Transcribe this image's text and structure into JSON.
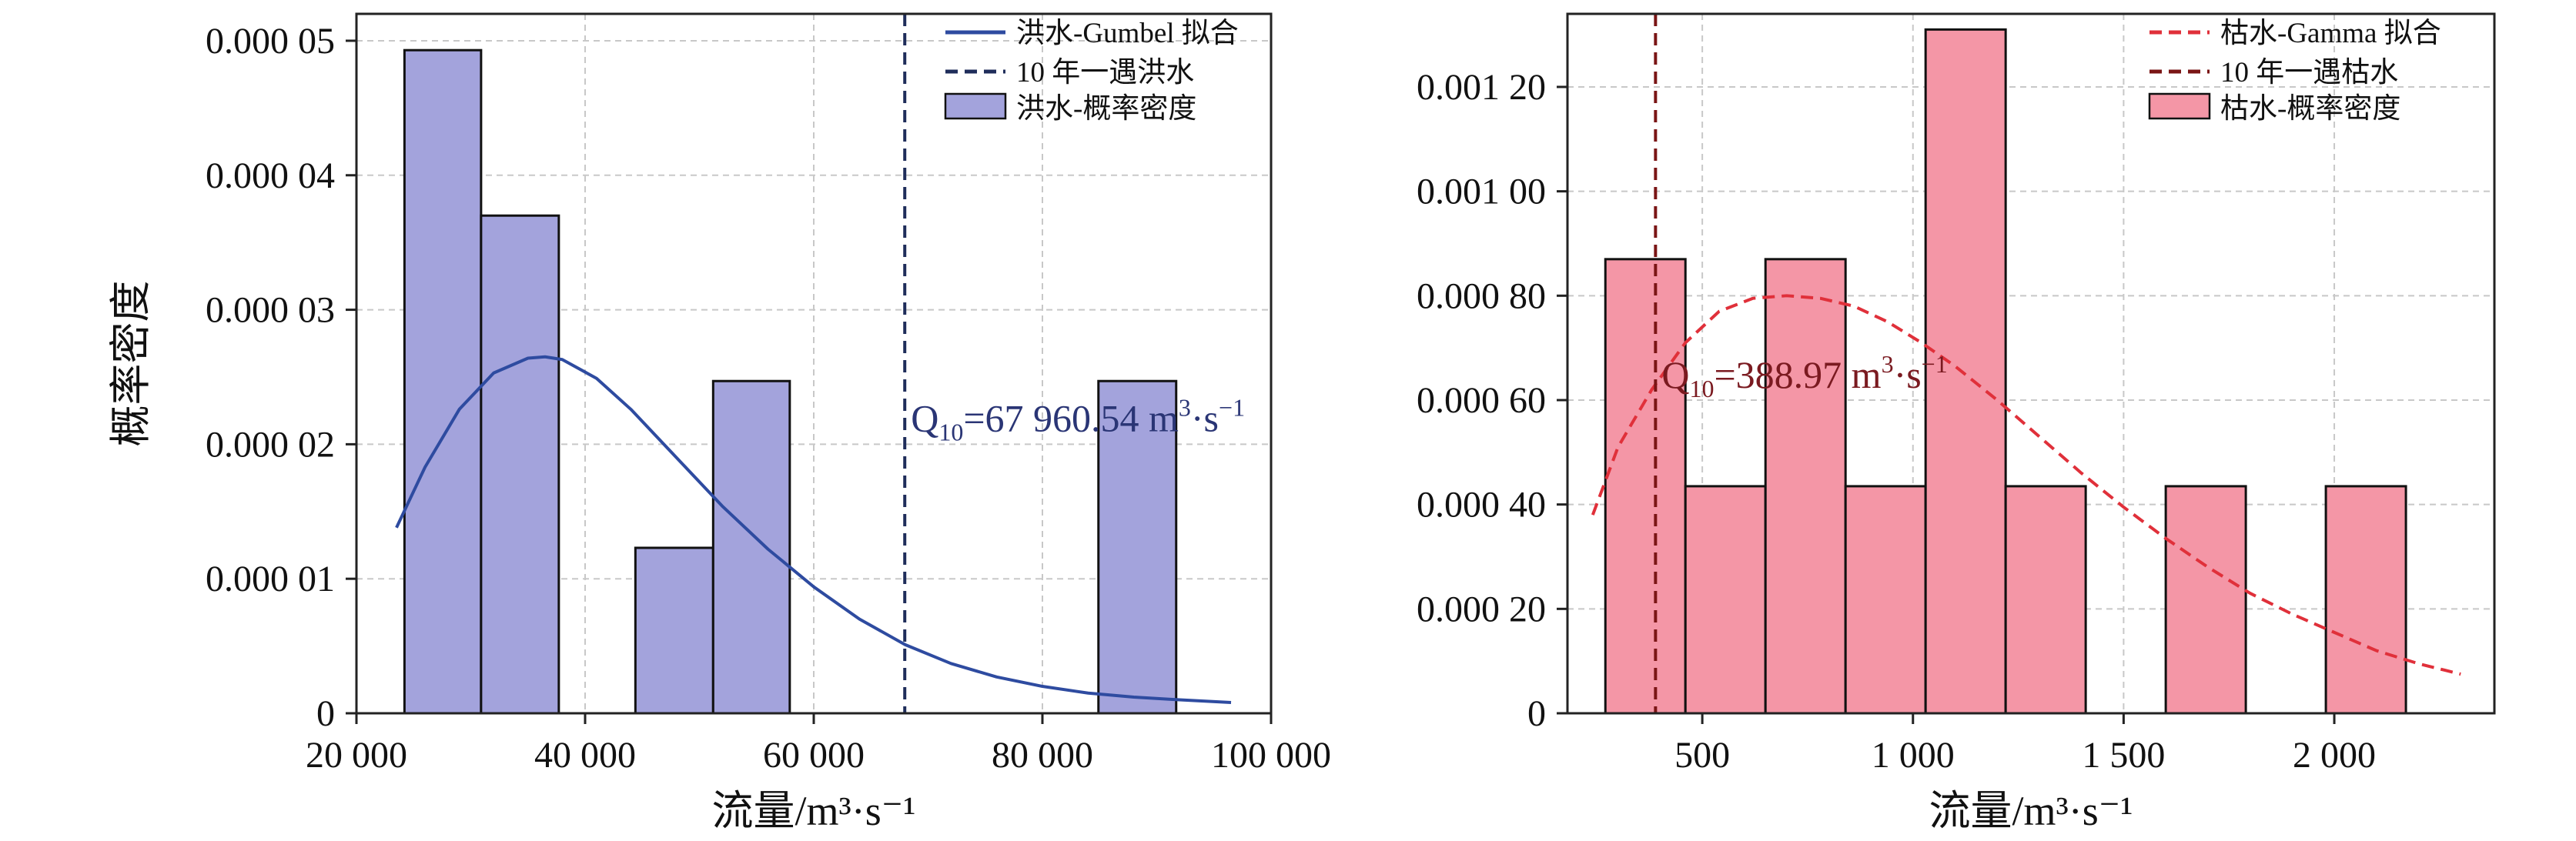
{
  "chart_data": [
    {
      "type": "bar",
      "subtype": "histogram-with-fit",
      "title": "",
      "xlabel": "流量/m³·s⁻¹",
      "ylabel": "概率密度",
      "xlim": [
        20000,
        100000
      ],
      "ylim": [
        0,
        5.2e-05
      ],
      "xticks": [
        20000,
        40000,
        60000,
        80000,
        100000
      ],
      "xtick_labels": [
        "20 000",
        "40 000",
        "60 000",
        "80 000",
        "100 000"
      ],
      "yticks": [
        0,
        1e-05,
        2e-05,
        3e-05,
        4e-05,
        5e-05
      ],
      "ytick_labels": [
        "0",
        "0.000 01",
        "0.000 02",
        "0.000 03",
        "0.000 04",
        "0.000 05"
      ],
      "grid": true,
      "legend_position": "top-right",
      "colors": {
        "bars": "#a3a3dc",
        "curve": "#2e4ba0",
        "vline": "#1f2d5a",
        "annotation": "#2a3575"
      },
      "bins": [
        {
          "x0": 24200,
          "x1": 30900,
          "value": 4.93e-05
        },
        {
          "x0": 30900,
          "x1": 37700,
          "value": 3.7e-05
        },
        {
          "x0": 37700,
          "x1": 44400,
          "value": 0
        },
        {
          "x0": 44400,
          "x1": 51200,
          "value": 1.23e-05
        },
        {
          "x0": 51200,
          "x1": 57900,
          "value": 2.47e-05
        },
        {
          "x0": 57900,
          "x1": 64700,
          "value": 0
        },
        {
          "x0": 64700,
          "x1": 71400,
          "value": 0
        },
        {
          "x0": 71400,
          "x1": 78100,
          "value": 0
        },
        {
          "x0": 78100,
          "x1": 84900,
          "value": 0
        },
        {
          "x0": 84900,
          "x1": 91700,
          "value": 2.47e-05
        }
      ],
      "fit_curve": {
        "x": [
          23500,
          26000,
          29000,
          32000,
          35000,
          36500,
          38000,
          41000,
          44000,
          48000,
          52000,
          56000,
          60000,
          64000,
          68000,
          72000,
          76000,
          80000,
          84000,
          88000,
          92000,
          96500
        ],
        "y": [
          1.38e-05,
          1.83e-05,
          2.26e-05,
          2.53e-05,
          2.64e-05,
          2.65e-05,
          2.63e-05,
          2.49e-05,
          2.26e-05,
          1.9e-05,
          1.54e-05,
          1.22e-05,
          9.4e-06,
          7e-06,
          5.1e-06,
          3.7e-06,
          2.7e-06,
          2e-06,
          1.5e-06,
          1.2e-06,
          1e-06,
          8e-07
        ]
      },
      "vline_x": 67960.54,
      "legend": {
        "curve": "洪水-Gumbel 拟合",
        "vline": "10 年一遇洪水",
        "bars": "洪水-概率密度"
      },
      "annotation": {
        "q": "Q",
        "sub": "10",
        "value": "=67 960.54 m",
        "sup": "3",
        "tail": "·s",
        "tail_sup": "−1",
        "x": 67960.54,
        "y": 2.2e-05
      }
    },
    {
      "type": "bar",
      "subtype": "histogram-with-fit",
      "title": "",
      "xlabel": "流量/m³·s⁻¹",
      "ylabel": "",
      "xlim": [
        180,
        2380
      ],
      "ylim": [
        0,
        0.00134
      ],
      "xticks": [
        500,
        1000,
        1500,
        2000
      ],
      "xtick_labels": [
        "500",
        "1 000",
        "1 500",
        "2 000"
      ],
      "yticks": [
        0,
        0.0002,
        0.0004,
        0.0006,
        0.0008,
        0.001,
        0.0012
      ],
      "ytick_labels": [
        "0",
        "0.000 20",
        "0.000 40",
        "0.000 60",
        "0.000 80",
        "0.001 00",
        "0.001 20"
      ],
      "grid": true,
      "legend_position": "top-right",
      "colors": {
        "bars": "#f496a6",
        "curve": "#e0303a",
        "vline": "#7a1515",
        "annotation": "#7a1a20"
      },
      "bins": [
        {
          "x0": 270,
          "x1": 460,
          "value": 0.00087
        },
        {
          "x0": 460,
          "x1": 650,
          "value": 0.000435
        },
        {
          "x0": 650,
          "x1": 840,
          "value": 0.00087
        },
        {
          "x0": 840,
          "x1": 1030,
          "value": 0.000435
        },
        {
          "x0": 1030,
          "x1": 1220,
          "value": 0.00131
        },
        {
          "x0": 1220,
          "x1": 1410,
          "value": 0.000435
        },
        {
          "x0": 1410,
          "x1": 1600,
          "value": 0
        },
        {
          "x0": 1600,
          "x1": 1790,
          "value": 0.000435
        },
        {
          "x0": 1790,
          "x1": 1980,
          "value": 0
        },
        {
          "x0": 1980,
          "x1": 2170,
          "value": 0.000435
        }
      ],
      "fit_curve": {
        "x": [
          240,
          300,
          380,
          460,
          540,
          620,
          700,
          780,
          860,
          940,
          1020,
          1100,
          1200,
          1300,
          1400,
          1500,
          1600,
          1700,
          1800,
          1900,
          2000,
          2100,
          2200,
          2300
        ],
        "y": [
          0.00038,
          0.00051,
          0.00062,
          0.00071,
          0.00077,
          0.000795,
          0.0008,
          0.000795,
          0.00078,
          0.00075,
          0.00071,
          0.000665,
          0.0006,
          0.00053,
          0.00046,
          0.000395,
          0.000335,
          0.00028,
          0.00023,
          0.00019,
          0.000155,
          0.00012,
          9.5e-05,
          7.5e-05
        ]
      },
      "vline_x": 388.97,
      "legend": {
        "curve": "枯水-Gamma 拟合",
        "vline": "10 年一遇枯水",
        "bars": "枯水-概率密度"
      },
      "annotation": {
        "q": "Q",
        "sub": "10",
        "value": "=388.97 m",
        "sup": "3",
        "tail": "·s",
        "tail_sup": "−1",
        "x": 388.97,
        "y": 0.00065
      }
    }
  ]
}
